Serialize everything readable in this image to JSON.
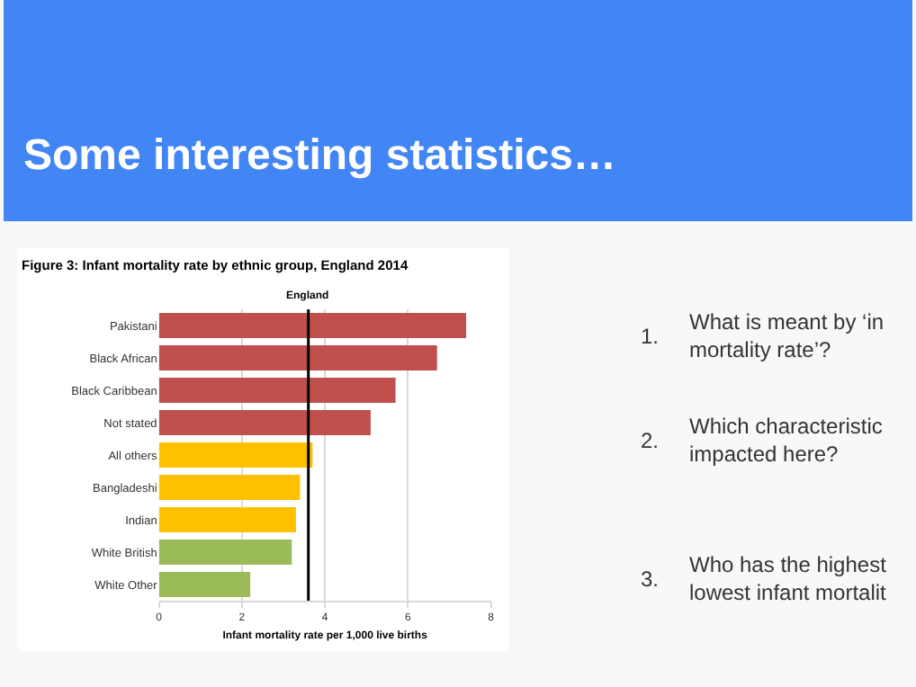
{
  "chart_data": {
    "type": "bar",
    "orientation": "horizontal",
    "title": "Figure 3: Infant mortality rate by ethnic group, England 2014",
    "xlabel": "Infant mortality rate per 1,000 live births",
    "categories": [
      "Pakistani",
      "Black African",
      "Black Caribbean",
      "Not stated",
      "All others",
      "Bangladeshi",
      "Indian",
      "White British",
      "White Other"
    ],
    "values": [
      7.4,
      6.7,
      5.7,
      5.1,
      3.7,
      3.4,
      3.3,
      3.2,
      2.2
    ],
    "colors": [
      "#c0504d",
      "#c0504d",
      "#c0504d",
      "#c0504d",
      "#ffc000",
      "#ffc000",
      "#ffc000",
      "#9bbb59",
      "#9bbb59"
    ],
    "xlim": [
      0,
      8
    ],
    "xticks": [
      0,
      2,
      4,
      6,
      8
    ],
    "grid": "x",
    "ref_lines": [
      {
        "axis": "x",
        "value": 3.6,
        "label": "England",
        "color": "#000000"
      }
    ],
    "annotations": [
      "Some interesting statistics…",
      "1. What is meant by ‘in\nmortality rate’?",
      "2. Which characteristic\nimpacted here?",
      "3. Who has the highest\nlowest infant mortalit"
    ]
  }
}
